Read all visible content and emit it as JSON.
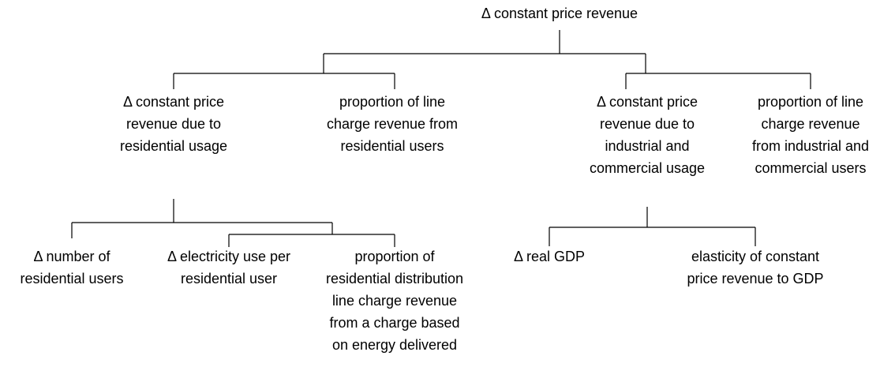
{
  "nodes": [
    {
      "lines": [
        "Δ constant price revenue"
      ]
    },
    {
      "lines": [
        "Δ constant price",
        "revenue due to",
        "residential usage"
      ]
    },
    {
      "lines": [
        "proportion of line",
        "charge revenue from",
        "residential users"
      ]
    },
    {
      "lines": [
        "Δ constant price",
        "revenue due to",
        "industrial and",
        "commercial usage"
      ]
    },
    {
      "lines": [
        "proportion of line",
        "charge revenue",
        "from industrial and",
        "commercial users"
      ]
    },
    {
      "lines": [
        "Δ number of",
        "residential users"
      ]
    },
    {
      "lines": [
        "Δ electricity use per",
        "residential user"
      ]
    },
    {
      "lines": [
        "proportion of",
        "residential distribution",
        "line charge revenue",
        "from a charge based",
        "on energy delivered"
      ]
    },
    {
      "lines": [
        "Δ real GDP"
      ]
    },
    {
      "lines": [
        "elasticity of constant",
        "price revenue to GDP"
      ]
    }
  ]
}
